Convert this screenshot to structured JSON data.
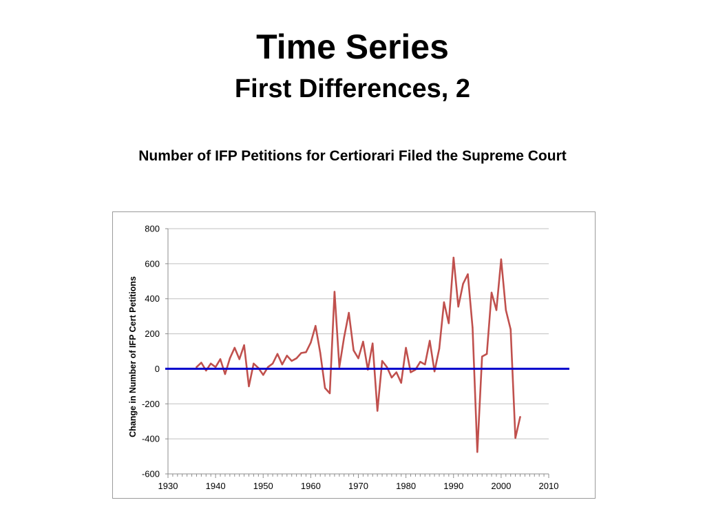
{
  "slide": {
    "title": "Time Series",
    "subtitle": "First Differences, 2",
    "caption": "Number of IFP Petitions for Certiorari Filed the Supreme Court"
  },
  "chart_data": {
    "type": "line",
    "title": "",
    "xlabel": "",
    "ylabel": "Change in Number of IFP Cert Petitions",
    "xlim": [
      1930,
      2010
    ],
    "ylim": [
      -600,
      800
    ],
    "x_ticks": [
      1930,
      1940,
      1950,
      1960,
      1970,
      1980,
      1990,
      2000,
      2010
    ],
    "y_ticks": [
      800,
      600,
      400,
      200,
      0,
      -200,
      -400,
      -600
    ],
    "grid": "horizontal",
    "series_color": "#c0504d",
    "zero_line_color": "#0000cc",
    "series": [
      {
        "x": [
          1936,
          1937,
          1938,
          1939,
          1940,
          1941,
          1942,
          1943,
          1944,
          1945,
          1946,
          1947,
          1948,
          1949,
          1950,
          1951,
          1952,
          1953,
          1954,
          1955,
          1956,
          1957,
          1958,
          1959,
          1960,
          1961,
          1962,
          1963,
          1964,
          1965,
          1966,
          1967,
          1968,
          1969,
          1970,
          1971,
          1972,
          1973,
          1974,
          1975,
          1976,
          1977,
          1978,
          1979,
          1980,
          1981,
          1982,
          1983,
          1984,
          1985,
          1986,
          1987,
          1988,
          1989,
          1990,
          1991,
          1992,
          1993,
          1994,
          1995,
          1996,
          1997,
          1998,
          1999,
          2000,
          2001,
          2002,
          2003,
          2004
        ],
        "y": [
          10,
          35,
          -10,
          30,
          10,
          55,
          -30,
          60,
          120,
          55,
          135,
          -100,
          30,
          5,
          -35,
          10,
          30,
          85,
          25,
          75,
          45,
          60,
          90,
          95,
          150,
          245,
          90,
          -110,
          -140,
          440,
          10,
          180,
          320,
          105,
          60,
          155,
          -5,
          145,
          -240,
          45,
          10,
          -50,
          -20,
          -80,
          120,
          -20,
          -5,
          40,
          25,
          160,
          -15,
          115,
          380,
          260,
          635,
          355,
          485,
          540,
          235,
          -475,
          70,
          85,
          435,
          335,
          625,
          335,
          225,
          -395,
          -275
        ]
      }
    ]
  }
}
